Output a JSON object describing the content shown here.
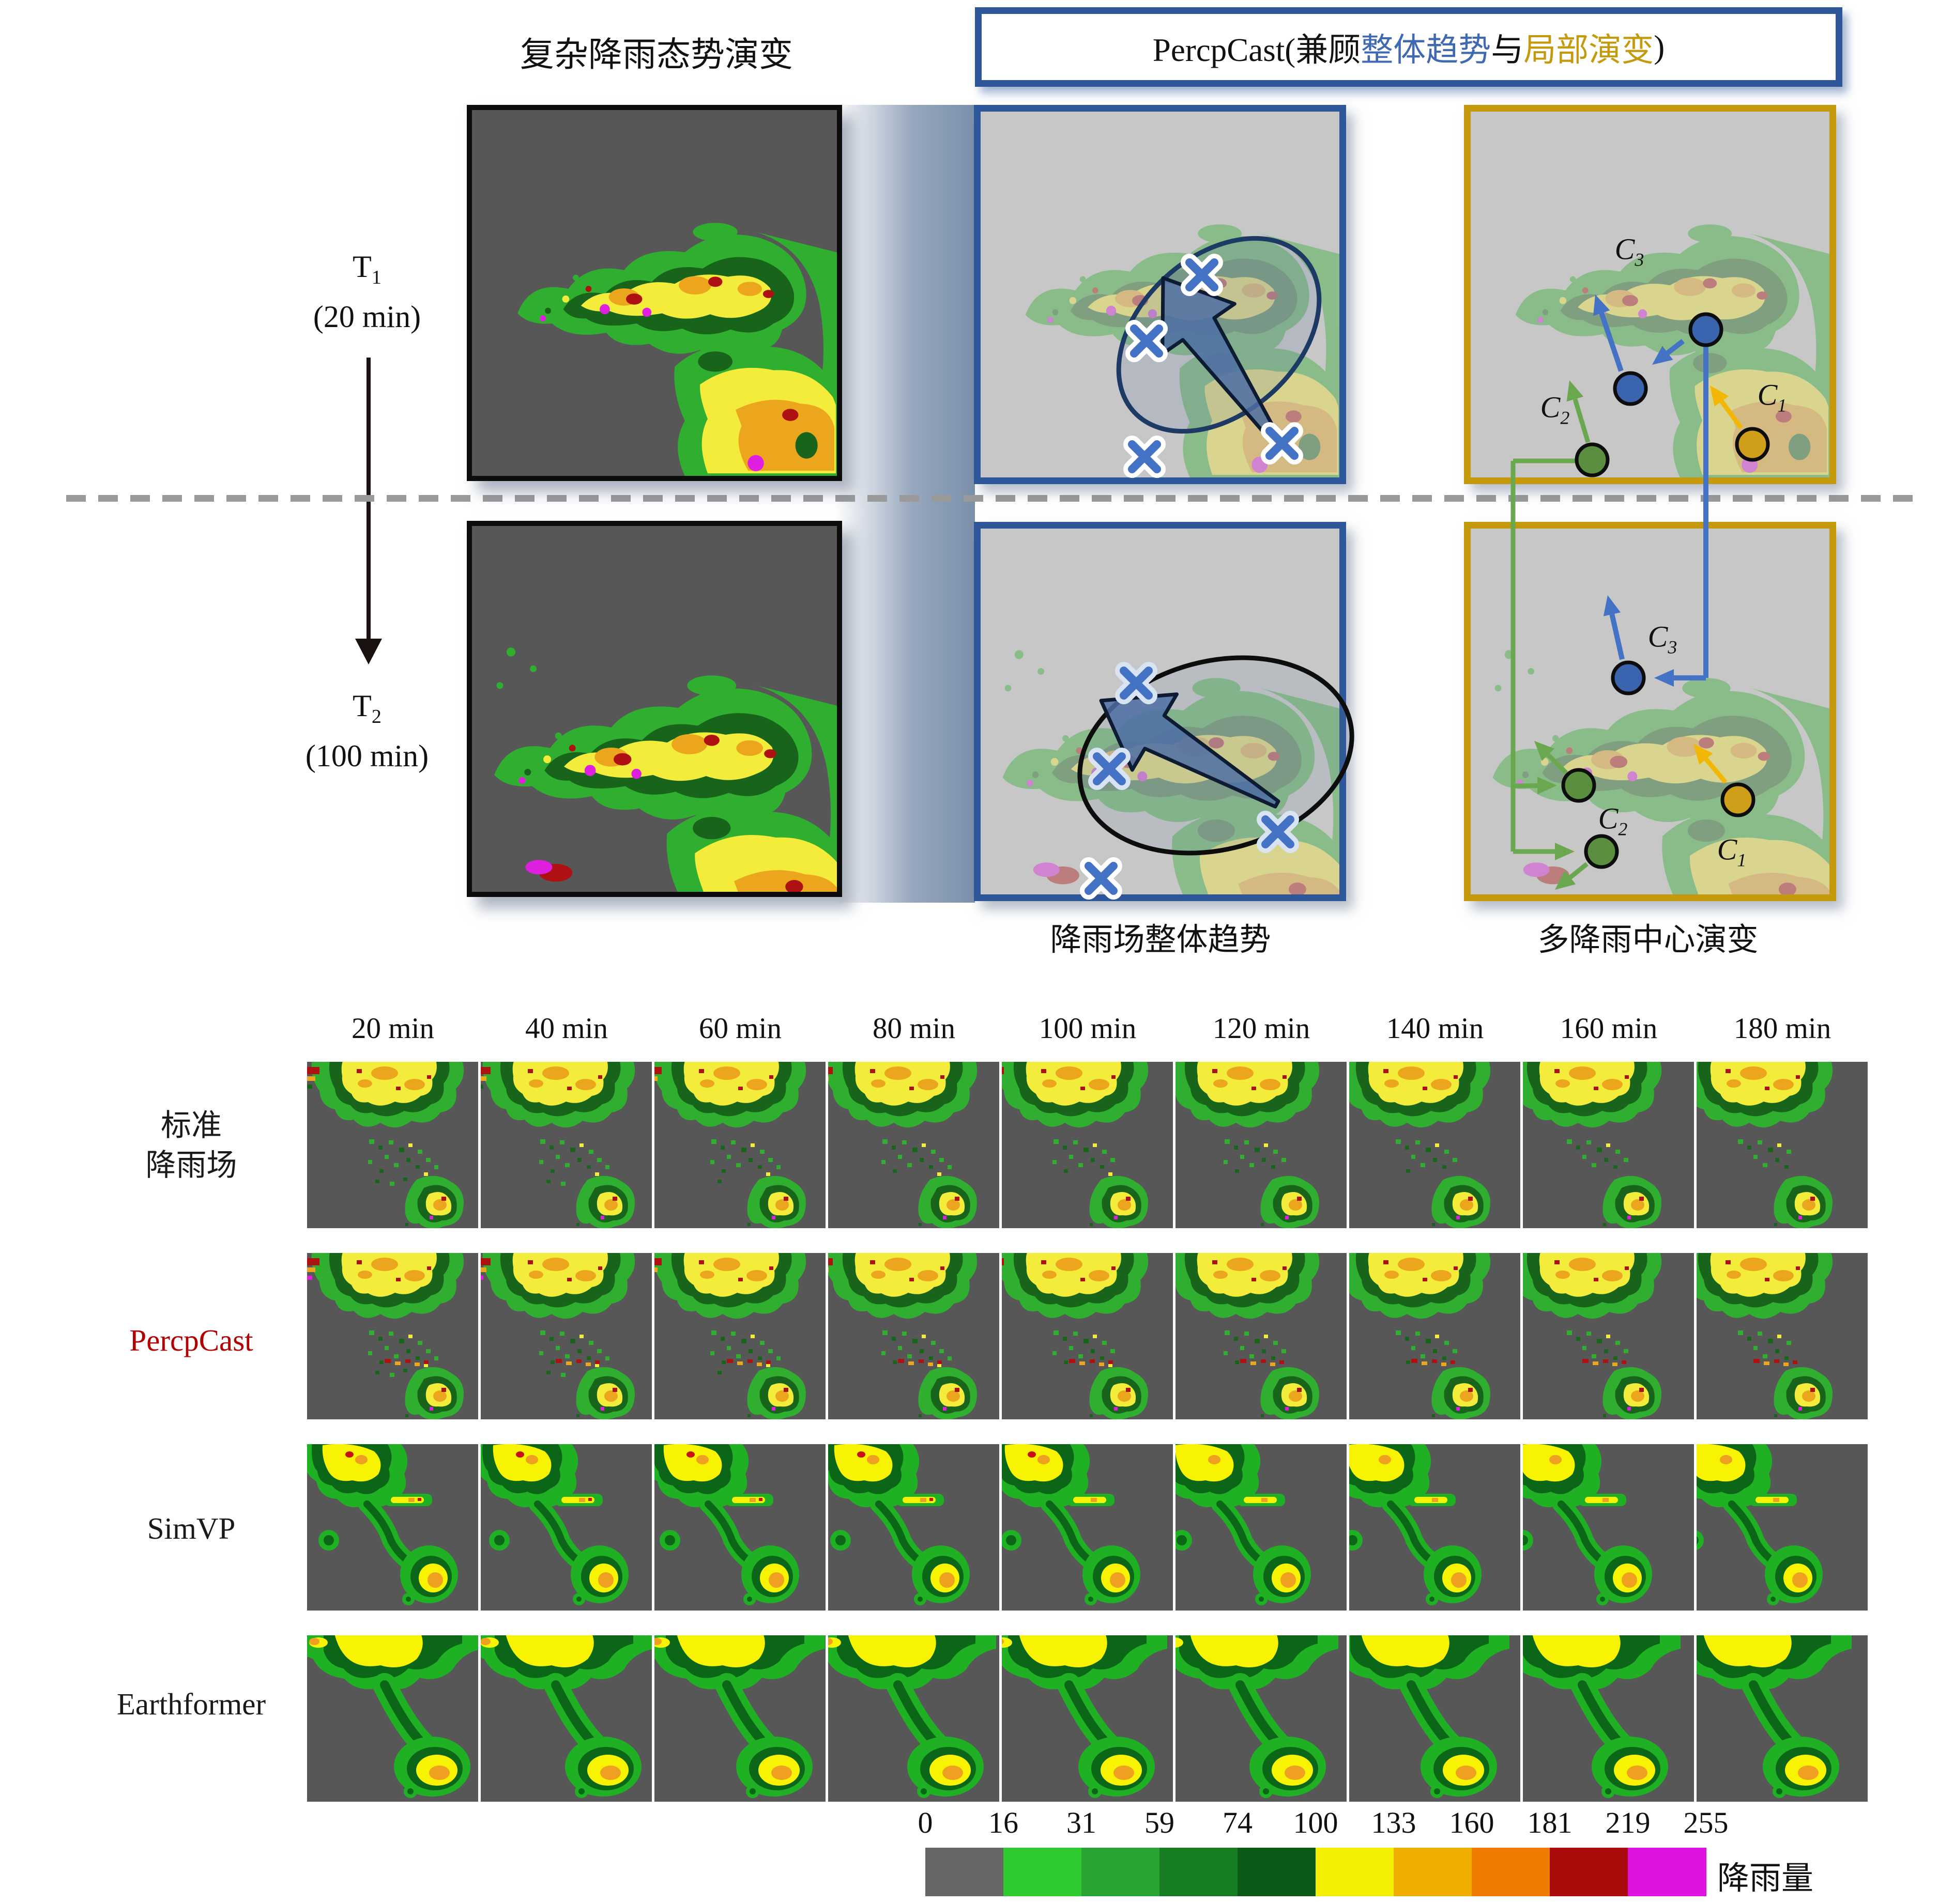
{
  "top": {
    "left_title": "复杂降雨态势演变",
    "header": {
      "part1": "PercpCast(兼顾",
      "trend": "整体趋势",
      "part2": "与",
      "local": "局部演变",
      "part3": ")",
      "trend_color": "#3f69b0",
      "local_color": "#c49a0c"
    },
    "t1": {
      "sym": "T",
      "sub": "1",
      "time": "(20 min)"
    },
    "t2": {
      "sym": "T",
      "sub": "2",
      "time": "(100 min)"
    },
    "captions": {
      "blue_panel": "降雨场整体趋势",
      "gold_panel": "多降雨中心演变"
    },
    "centers": {
      "c1": {
        "sym": "C",
        "sub": "1",
        "color": "#cf9f1a"
      },
      "c2": {
        "sym": "C",
        "sub": "2",
        "color": "#5b8f3f"
      },
      "c3": {
        "sym": "C",
        "sub": "3",
        "color": "#3a64ad"
      }
    },
    "panel_border_blue": "#2d5799",
    "panel_border_gold": "#c49a0c"
  },
  "grid": {
    "time_labels": [
      "20 min",
      "40 min",
      "60 min",
      "80 min",
      "100 min",
      "120 min",
      "140 min",
      "160 min",
      "180 min"
    ],
    "rows": [
      {
        "id": "truth",
        "label_lines": [
          "标准",
          "降雨场"
        ],
        "label_color": "#1a1a1a"
      },
      {
        "id": "percpcast",
        "label_lines": [
          "PercpCast"
        ],
        "label_color": "#b30000"
      },
      {
        "id": "simvp",
        "label_lines": [
          "SimVP"
        ],
        "label_color": "#1a1a1a"
      },
      {
        "id": "earthformer",
        "label_lines": [
          "Earthformer"
        ],
        "label_color": "#1a1a1a"
      }
    ]
  },
  "colorbar": {
    "label": "降雨量",
    "ticks": [
      "0",
      "16",
      "31",
      "59",
      "74",
      "100",
      "133",
      "160",
      "181",
      "219",
      "255"
    ],
    "colors": [
      "#666666",
      "#2fc930",
      "#28a432",
      "#177d23",
      "#0d5a18",
      "#f4ef00",
      "#efae00",
      "#ee7a00",
      "#a90a0a",
      "#e012e0"
    ]
  }
}
